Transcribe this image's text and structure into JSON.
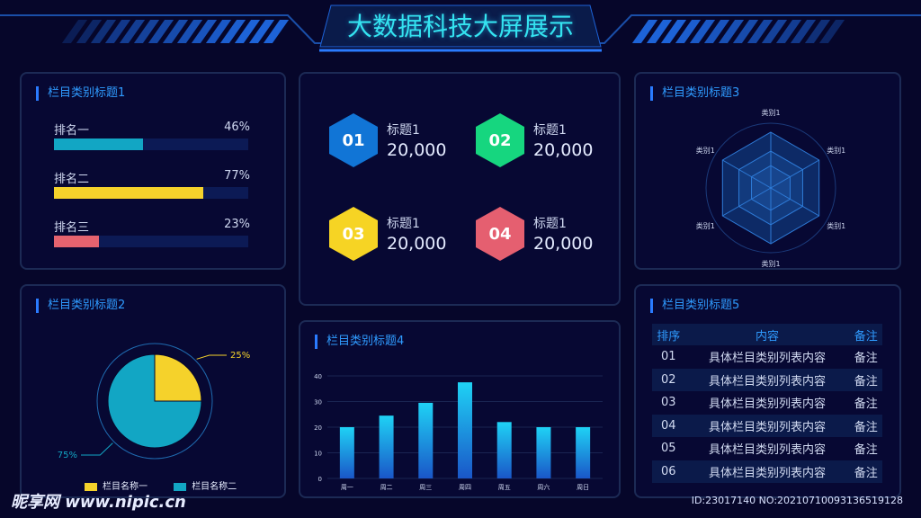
{
  "header": {
    "title": "大数据科技大屏展示"
  },
  "panels": {
    "p1_title": "栏目类别标题1",
    "p2_title": "栏目类别标题2",
    "p3_title": "栏目类别标题3",
    "p4_title": "栏目类别标题4",
    "p5_title": "栏目类别标题5"
  },
  "ranking": [
    {
      "label": "排名一",
      "percent": "46%",
      "value": 0.46,
      "color": "#12a6c4"
    },
    {
      "label": "排名二",
      "percent": "77%",
      "value": 0.77,
      "color": "#f5d22b"
    },
    {
      "label": "排名三",
      "percent": "23%",
      "value": 0.23,
      "color": "#e5636f"
    }
  ],
  "kpis": [
    {
      "num": "01",
      "title": "标题1",
      "value": "20,000",
      "color": "#1175d6"
    },
    {
      "num": "02",
      "title": "标题1",
      "value": "20,000",
      "color": "#16d67f"
    },
    {
      "num": "03",
      "title": "标题1",
      "value": "20,000",
      "color": "#f6d424"
    },
    {
      "num": "04",
      "title": "标题1",
      "value": "20,000",
      "color": "#e55f70"
    }
  ],
  "pie": {
    "slices": [
      {
        "name": "栏目名称一",
        "value": 25,
        "label": "25%",
        "color": "#f5d22b"
      },
      {
        "name": "栏目名称二",
        "value": 75,
        "label": "75%",
        "color": "#12a6c4"
      }
    ]
  },
  "radar": {
    "axes": [
      "类别1",
      "类别1",
      "类别1",
      "类别1",
      "类别1",
      "类别1"
    ]
  },
  "table": {
    "headers": [
      "排序",
      "内容",
      "备注"
    ],
    "rows": [
      [
        "01",
        "具体栏目类别列表内容",
        "备注"
      ],
      [
        "02",
        "具体栏目类别列表内容",
        "备注"
      ],
      [
        "03",
        "具体栏目类别列表内容",
        "备注"
      ],
      [
        "04",
        "具体栏目类别列表内容",
        "备注"
      ],
      [
        "05",
        "具体栏目类别列表内容",
        "备注"
      ],
      [
        "06",
        "具体栏目类别列表内容",
        "备注"
      ]
    ]
  },
  "watermark": {
    "logo": "昵享网 www.nipic.cn",
    "id": "ID:23017140 NO:20210710093136519128"
  },
  "chart_data": {
    "type": "bar",
    "categories": [
      "周一",
      "周二",
      "周三",
      "周四",
      "周五",
      "周六",
      "周日"
    ],
    "values": [
      20,
      24.5,
      29.5,
      37.5,
      22,
      20,
      20
    ],
    "ylim": [
      0,
      40
    ],
    "yticks": [
      "0",
      "10",
      "20",
      "30",
      "40"
    ],
    "grid": true
  }
}
